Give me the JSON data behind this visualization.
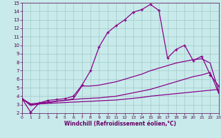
{
  "bg_color": "#c8eaea",
  "grid_color": "#a0c8c8",
  "line_color": "#880088",
  "marker": "+",
  "xlabel": "Windchill (Refroidissement éolien,°C)",
  "xlabel_color": "#660066",
  "tick_color": "#550055",
  "xmin": 0,
  "xmax": 23,
  "ymin": 2,
  "ymax": 15,
  "series1_x": [
    0,
    1,
    2,
    3,
    4,
    5,
    6,
    7,
    8,
    9,
    10,
    11,
    12,
    13,
    14,
    15,
    16,
    17,
    18,
    19,
    20,
    21,
    22,
    23
  ],
  "series1_y": [
    3.7,
    2.1,
    3.2,
    3.5,
    3.6,
    3.7,
    4.0,
    5.3,
    7.0,
    9.8,
    11.5,
    12.3,
    13.0,
    13.9,
    14.2,
    14.8,
    14.1,
    8.5,
    9.5,
    10.0,
    8.2,
    8.7,
    6.5,
    5.2
  ],
  "series2_x": [
    0,
    1,
    2,
    3,
    4,
    5,
    6,
    7,
    8,
    9,
    10,
    11,
    12,
    13,
    14,
    15,
    16,
    17,
    18,
    19,
    20,
    21,
    22,
    23
  ],
  "series2_y": [
    3.7,
    2.9,
    3.1,
    3.2,
    3.4,
    3.5,
    3.7,
    5.2,
    5.2,
    5.3,
    5.5,
    5.7,
    6.0,
    6.3,
    6.6,
    7.0,
    7.3,
    7.6,
    7.9,
    8.1,
    8.3,
    8.4,
    7.9,
    4.5
  ],
  "series3_x": [
    0,
    1,
    2,
    3,
    4,
    5,
    6,
    7,
    8,
    9,
    10,
    11,
    12,
    13,
    14,
    15,
    16,
    17,
    18,
    19,
    20,
    21,
    22,
    23
  ],
  "series3_y": [
    3.7,
    3.1,
    3.2,
    3.3,
    3.4,
    3.5,
    3.6,
    3.7,
    3.75,
    3.8,
    3.9,
    4.0,
    4.2,
    4.4,
    4.6,
    4.8,
    5.1,
    5.4,
    5.7,
    6.0,
    6.3,
    6.5,
    6.8,
    4.3
  ],
  "series4_x": [
    0,
    1,
    2,
    3,
    4,
    5,
    6,
    7,
    8,
    9,
    10,
    11,
    12,
    13,
    14,
    15,
    16,
    17,
    18,
    19,
    20,
    21,
    22,
    23
  ],
  "series4_y": [
    3.7,
    3.0,
    3.1,
    3.15,
    3.2,
    3.25,
    3.3,
    3.35,
    3.4,
    3.45,
    3.5,
    3.55,
    3.65,
    3.75,
    3.85,
    4.0,
    4.1,
    4.2,
    4.3,
    4.4,
    4.5,
    4.6,
    4.7,
    4.8
  ]
}
